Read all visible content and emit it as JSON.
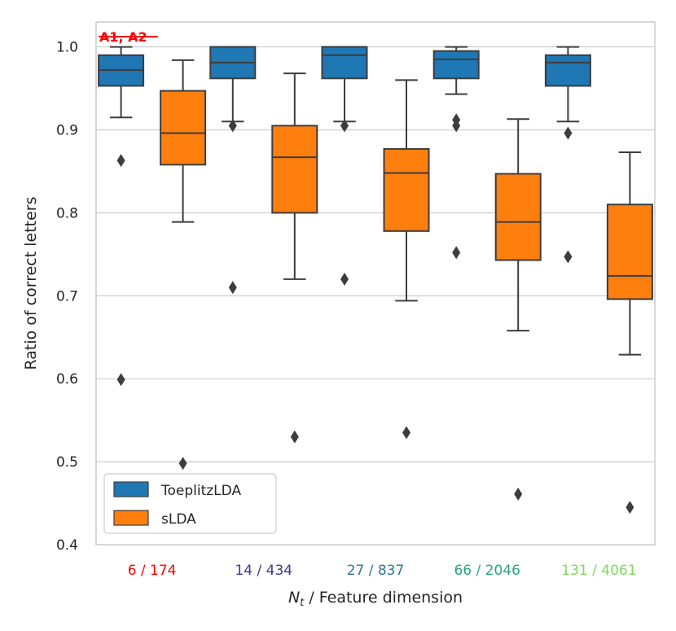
{
  "chart_data": {
    "type": "box",
    "title": "",
    "ylabel": "Ratio of correct letters",
    "xlabel_prefix": "N",
    "xlabel_subscript": "t",
    "xlabel_suffix": " / Feature dimension",
    "ylim": [
      0.4,
      1.03
    ],
    "yticks": [
      0.4,
      0.5,
      0.6,
      0.7,
      0.8,
      0.9,
      1.0
    ],
    "ytick_labels": [
      "0.4",
      "0.5",
      "0.6",
      "0.7",
      "0.8",
      "0.9",
      "1.0"
    ],
    "grid": "horizontal",
    "annotation": "A1, A2",
    "categories": [
      {
        "label": "6 / 174",
        "color": "#ff0000"
      },
      {
        "label": "14 / 434",
        "color": "#3b3b8f"
      },
      {
        "label": "27 / 837",
        "color": "#2c7a8c"
      },
      {
        "label": "66 / 2046",
        "color": "#2aa67c"
      },
      {
        "label": "131 / 4061",
        "color": "#7ed957"
      }
    ],
    "series": [
      {
        "name": "ToeplitzLDA",
        "color": "#1f77b4",
        "boxes": [
          {
            "whislo": 0.915,
            "q1": 0.953,
            "med": 0.972,
            "q3": 0.99,
            "whishi": 1.0,
            "fliers": [
              0.863,
              0.599
            ]
          },
          {
            "whislo": 0.91,
            "q1": 0.962,
            "med": 0.981,
            "q3": 1.0,
            "whishi": 1.0,
            "fliers": [
              0.905,
              0.71
            ]
          },
          {
            "whislo": 0.91,
            "q1": 0.962,
            "med": 0.99,
            "q3": 1.0,
            "whishi": 1.0,
            "fliers": [
              0.905,
              0.72
            ]
          },
          {
            "whislo": 0.943,
            "q1": 0.962,
            "med": 0.985,
            "q3": 0.995,
            "whishi": 1.0,
            "fliers": [
              0.912,
              0.905,
              0.752
            ]
          },
          {
            "whislo": 0.91,
            "q1": 0.953,
            "med": 0.981,
            "q3": 0.99,
            "whishi": 1.0,
            "fliers": [
              0.896,
              0.747
            ]
          }
        ]
      },
      {
        "name": "sLDA",
        "color": "#ff7f0e",
        "boxes": [
          {
            "whislo": 0.789,
            "q1": 0.858,
            "med": 0.896,
            "q3": 0.947,
            "whishi": 0.984,
            "fliers": [
              0.498
            ]
          },
          {
            "whislo": 0.72,
            "q1": 0.8,
            "med": 0.867,
            "q3": 0.905,
            "whishi": 0.968,
            "fliers": [
              0.53
            ]
          },
          {
            "whislo": 0.694,
            "q1": 0.778,
            "med": 0.848,
            "q3": 0.877,
            "whishi": 0.96,
            "fliers": [
              0.535
            ]
          },
          {
            "whislo": 0.658,
            "q1": 0.743,
            "med": 0.789,
            "q3": 0.847,
            "whishi": 0.913,
            "fliers": [
              0.461
            ]
          },
          {
            "whislo": 0.629,
            "q1": 0.696,
            "med": 0.724,
            "q3": 0.81,
            "whishi": 0.873,
            "fliers": [
              0.445
            ]
          }
        ]
      }
    ],
    "legend": {
      "position": "lower-left",
      "entries": [
        "ToeplitzLDA",
        "sLDA"
      ]
    }
  }
}
